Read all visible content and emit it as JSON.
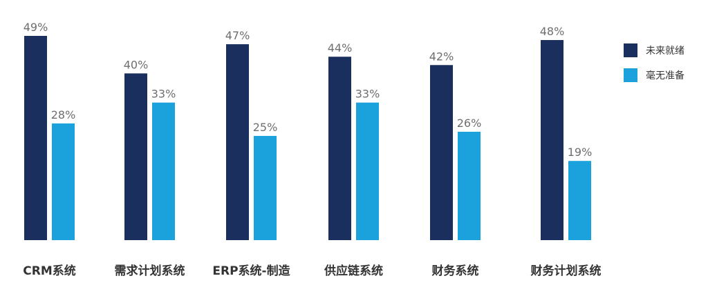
{
  "chart_data": {
    "type": "bar",
    "categories": [
      "CRM系统",
      "需求计划系统",
      "ERP系统-制造",
      "供应链系统",
      "财务系统",
      "财务计划系统"
    ],
    "series": [
      {
        "name": "未来就绪",
        "values": [
          49,
          40,
          47,
          44,
          42,
          48
        ],
        "color": "#1b2f5e"
      },
      {
        "name": "毫无准备",
        "values": [
          28,
          33,
          25,
          33,
          26,
          19
        ],
        "color": "#1ba1dc"
      }
    ],
    "value_suffix": "%",
    "title": "",
    "xlabel": "",
    "ylabel": "",
    "ylim": [
      0,
      49
    ],
    "grid": false,
    "legend_position": "top-right"
  }
}
